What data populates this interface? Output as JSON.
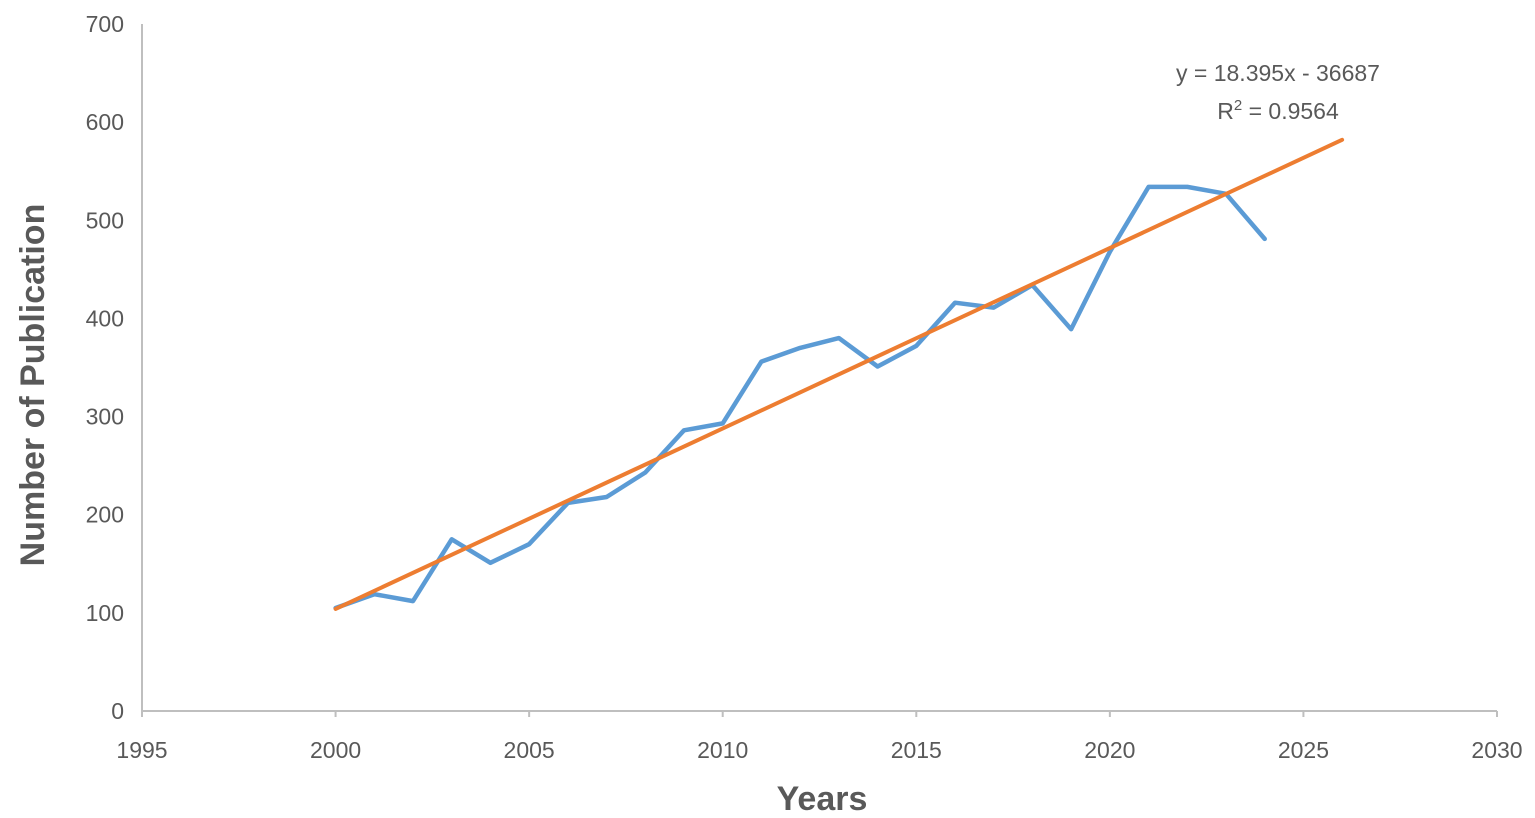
{
  "chart_data": {
    "type": "line",
    "xlabel": "Years",
    "ylabel": "Number of Publication",
    "xlim": [
      1995,
      2030
    ],
    "ylim": [
      0,
      700
    ],
    "xticks": [
      "1995",
      "2000",
      "2005",
      "2010",
      "2015",
      "2020",
      "2025",
      "2030"
    ],
    "yticks": [
      "0",
      "100",
      "200",
      "300",
      "400",
      "500",
      "600",
      "700"
    ],
    "grid": false,
    "legend": "none",
    "series": [
      {
        "kind": "data",
        "color": "#5B9BD5",
        "x": [
          2000,
          2001,
          2002,
          2003,
          2004,
          2005,
          2006,
          2007,
          2008,
          2009,
          2010,
          2011,
          2012,
          2013,
          2014,
          2015,
          2016,
          2017,
          2018,
          2019,
          2020,
          2021,
          2022,
          2023,
          2024
        ],
        "y": [
          105,
          119,
          112,
          175,
          151,
          170,
          212,
          218,
          243,
          286,
          293,
          356,
          370,
          380,
          351,
          372,
          416,
          411,
          434,
          389,
          468,
          534,
          534,
          527,
          481
        ]
      },
      {
        "kind": "trendline",
        "color": "#ED7D31",
        "x": [
          2000,
          2026
        ],
        "y": [
          104,
          582
        ]
      }
    ],
    "trendline_equation": "y = 18.395x - 36687",
    "r_squared_label": "R",
    "r_squared_sup": "2",
    "r_squared_value": " = 0.9564"
  }
}
